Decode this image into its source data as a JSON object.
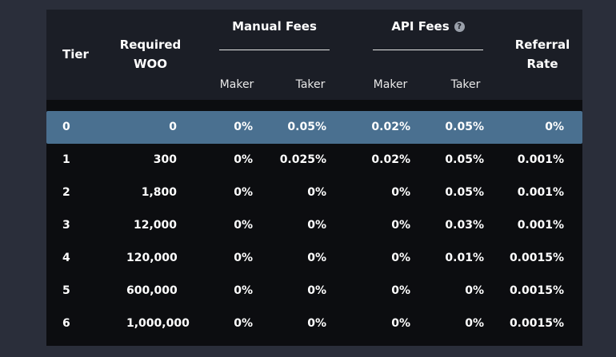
{
  "header": {
    "tier": "Tier",
    "required_line1": "Required",
    "required_line2": "WOO",
    "manual_fees": "Manual Fees",
    "api_fees": "API Fees",
    "info_icon": "?",
    "referral_line1": "Referral",
    "referral_line2": "Rate",
    "manual_maker": "Maker",
    "manual_taker": "Taker",
    "api_maker": "Maker",
    "api_taker": "Taker"
  },
  "rows": [
    {
      "tier": "0",
      "required": "0",
      "manual_maker": "0%",
      "manual_taker": "0.05%",
      "api_maker": "0.02%",
      "api_taker": "0.05%",
      "referral": "0%"
    },
    {
      "tier": "1",
      "required": "300",
      "manual_maker": "0%",
      "manual_taker": "0.025%",
      "api_maker": "0.02%",
      "api_taker": "0.05%",
      "referral": "0.001%"
    },
    {
      "tier": "2",
      "required": "1,800",
      "manual_maker": "0%",
      "manual_taker": "0%",
      "api_maker": "0%",
      "api_taker": "0.05%",
      "referral": "0.001%"
    },
    {
      "tier": "3",
      "required": "12,000",
      "manual_maker": "0%",
      "manual_taker": "0%",
      "api_maker": "0%",
      "api_taker": "0.03%",
      "referral": "0.001%"
    },
    {
      "tier": "4",
      "required": "120,000",
      "manual_maker": "0%",
      "manual_taker": "0%",
      "api_maker": "0%",
      "api_taker": "0.01%",
      "referral": "0.0015%"
    },
    {
      "tier": "5",
      "required": "600,000",
      "manual_maker": "0%",
      "manual_taker": "0%",
      "api_maker": "0%",
      "api_taker": "0%",
      "referral": "0.0015%"
    },
    {
      "tier": "6",
      "required": "1,000,000",
      "manual_maker": "0%",
      "manual_taker": "0%",
      "api_maker": "0%",
      "api_taker": "0%",
      "referral": "0.0015%"
    }
  ],
  "colors": {
    "background": "#2a2e3a",
    "panel": "#0c0d10",
    "header": "#1b1e26",
    "selected_row": "#4a7090"
  }
}
